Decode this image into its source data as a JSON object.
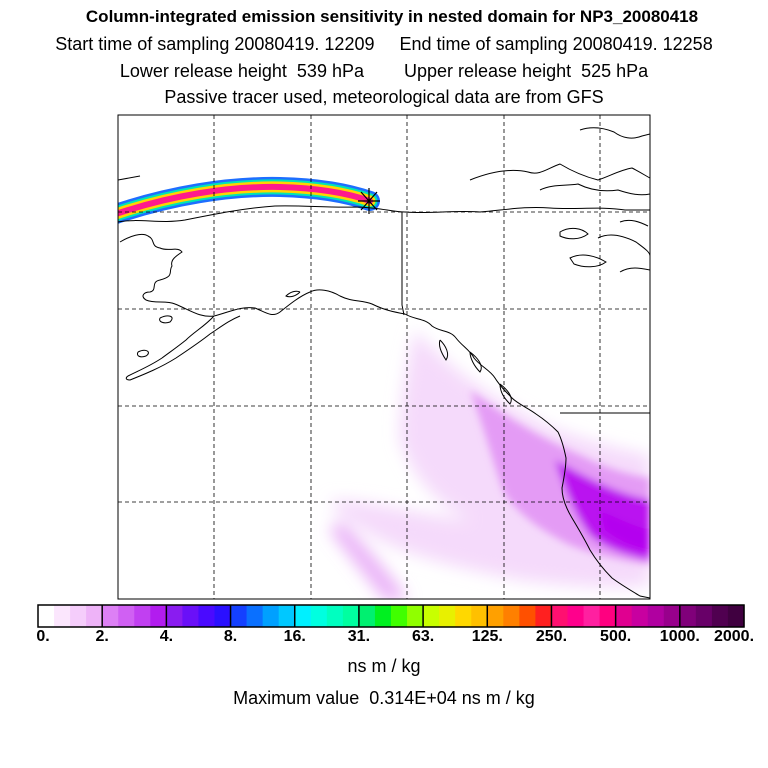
{
  "header": {
    "title": "Column-integrated emission sensitivity in nested domain for NP3_20080418",
    "sampling_line": "Start time of sampling 20080419. 12209     End time of sampling 20080419. 12258",
    "release_line": "Lower release height  539 hPa        Upper release height  525 hPa",
    "tracer_line": "Passive tracer used, meteorological data are from GFS"
  },
  "map": {
    "receptor_marker": "asterisk-receptor-icon",
    "colors": {
      "plume_light": "#f4d6fb",
      "plume_mid": "#e08cf4",
      "plume_strong": "#b400f0",
      "track_core": "#ff1a8c",
      "track_edge1": "#ffd400",
      "track_edge2": "#00e6b4",
      "track_edge3": "#1e6eff"
    }
  },
  "colorbar": {
    "tick_labels": [
      "0.",
      "2.",
      "4.",
      "8.",
      "16.",
      "31.",
      "63.",
      "125.",
      "250.",
      "500.",
      "1000.",
      "2000."
    ],
    "colors": [
      "#ffffff",
      "#fbe6fd",
      "#f5cdfb",
      "#eeb3f8",
      "#dd80f5",
      "#d060f3",
      "#c140f1",
      "#b21cef",
      "#8a1cf0",
      "#6a10f8",
      "#4a0aff",
      "#2a10ff",
      "#1440ff",
      "#0a70ff",
      "#00a0ff",
      "#00c8ff",
      "#00f0ff",
      "#00ffe0",
      "#00ffc0",
      "#00ffa0",
      "#00f070",
      "#00f020",
      "#40ff00",
      "#90ff00",
      "#c8ff00",
      "#e8f000",
      "#ffd800",
      "#ffc000",
      "#ffa000",
      "#ff8000",
      "#ff5000",
      "#ff2020",
      "#ff1070",
      "#ff008c",
      "#ff20a0",
      "#ff0080",
      "#e00090",
      "#c800a0",
      "#b000a0",
      "#98008c",
      "#80007a",
      "#680068",
      "#500050",
      "#400040"
    ],
    "units": "ns m / kg",
    "max_value": "Maximum value  0.314E+04 ns m / kg"
  }
}
